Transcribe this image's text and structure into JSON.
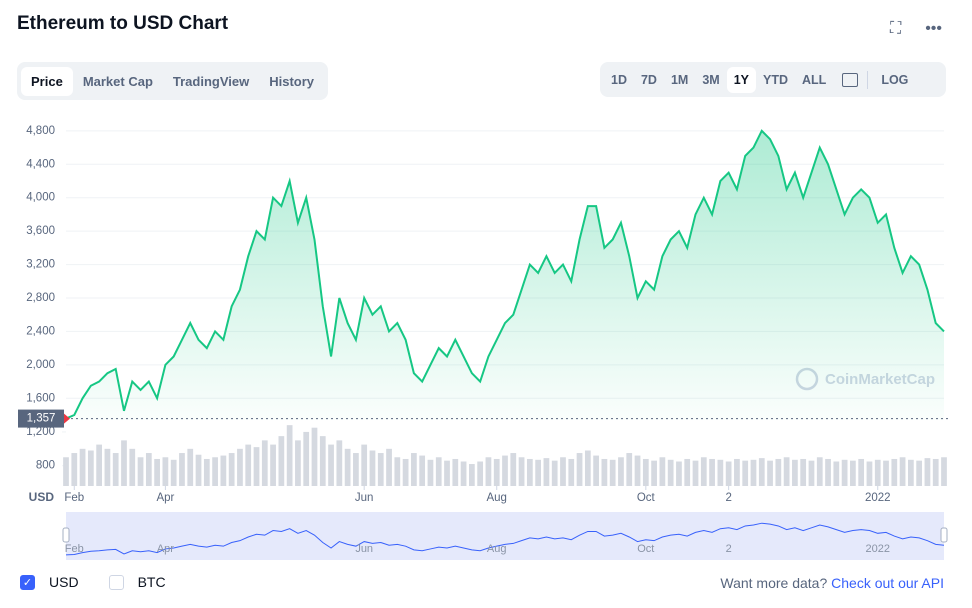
{
  "header": {
    "title": "Ethereum to USD Chart"
  },
  "tabs": [
    "Price",
    "Market Cap",
    "TradingView",
    "History"
  ],
  "active_tab_index": 0,
  "ranges": [
    "1D",
    "7D",
    "1M",
    "3M",
    "1Y",
    "YTD",
    "ALL"
  ],
  "active_range_index": 4,
  "log_label": "LOG",
  "chart_data": {
    "type": "line",
    "y_axis_label": "USD",
    "watermark": "CoinMarketCap",
    "categories": [
      null,
      "Feb",
      null,
      null,
      null,
      null,
      null,
      null,
      null,
      null,
      null,
      null,
      "Apr",
      null,
      null,
      null,
      null,
      null,
      null,
      null,
      null,
      null,
      null,
      null,
      null,
      null,
      null,
      null,
      null,
      null,
      null,
      null,
      null,
      null,
      null,
      null,
      "Jun",
      null,
      null,
      null,
      null,
      null,
      null,
      null,
      null,
      null,
      null,
      null,
      null,
      null,
      null,
      null,
      "Aug",
      null,
      null,
      null,
      null,
      null,
      null,
      null,
      null,
      null,
      null,
      null,
      null,
      null,
      null,
      null,
      null,
      null,
      "Oct",
      null,
      null,
      null,
      null,
      null,
      null,
      null,
      null,
      null,
      "2",
      null,
      null,
      null,
      null,
      null,
      null,
      null,
      null,
      null,
      null,
      null,
      null,
      null,
      null,
      null,
      null,
      null,
      "2022",
      null,
      null,
      null,
      null,
      null,
      null,
      null,
      null
    ],
    "color": "#16c784",
    "values": [
      1357,
      1400,
      1600,
      1750,
      1800,
      1900,
      1950,
      1450,
      1800,
      1700,
      1800,
      1600,
      2000,
      2100,
      2300,
      2500,
      2300,
      2200,
      2400,
      2300,
      2700,
      2900,
      3300,
      3600,
      3500,
      4000,
      3900,
      4200,
      3700,
      4000,
      3500,
      2700,
      2100,
      2800,
      2500,
      2300,
      2800,
      2600,
      2700,
      2400,
      2500,
      2300,
      1900,
      1800,
      2000,
      2200,
      2100,
      2300,
      2100,
      1900,
      1800,
      2100,
      2300,
      2500,
      2600,
      2900,
      3200,
      3100,
      3300,
      3100,
      3200,
      3000,
      3500,
      3900,
      3900,
      3400,
      3500,
      3700,
      3300,
      2800,
      3000,
      2900,
      3300,
      3500,
      3600,
      3400,
      3800,
      4000,
      3800,
      4200,
      4300,
      4100,
      4500,
      4600,
      4800,
      4700,
      4500,
      4100,
      4300,
      4000,
      4300,
      4600,
      4400,
      4100,
      3800,
      4000,
      4100,
      4000,
      3700,
      3800,
      3400,
      3100,
      3300,
      3200,
      2900,
      2500,
      2400
    ],
    "ylim": [
      1340,
      4930
    ],
    "yticks": [
      {
        "value": 1600,
        "label": "1,600"
      },
      {
        "value": 2000,
        "label": "2,000"
      },
      {
        "value": 2400,
        "label": "2,400"
      },
      {
        "value": 2800,
        "label": "2,800"
      },
      {
        "value": 3200,
        "label": "3,200"
      },
      {
        "value": 3600,
        "label": "3,600"
      },
      {
        "value": 4000,
        "label": "4,000"
      },
      {
        "value": 4400,
        "label": "4,400"
      },
      {
        "value": 4800,
        "label": "4,800"
      }
    ],
    "grid": true,
    "price_marker": {
      "value": 1357,
      "label": "1,357"
    },
    "volume": {
      "color": "#d5d9e0",
      "values": [
        900,
        950,
        1000,
        980,
        1050,
        1000,
        950,
        1100,
        1000,
        900,
        950,
        880,
        900,
        870,
        950,
        1000,
        930,
        880,
        900,
        920,
        950,
        1000,
        1050,
        1020,
        1100,
        1050,
        1150,
        1280,
        1100,
        1200,
        1250,
        1150,
        1050,
        1100,
        1000,
        950,
        1050,
        980,
        950,
        1000,
        900,
        880,
        950,
        920,
        870,
        900,
        860,
        880,
        850,
        820,
        850,
        900,
        880,
        920,
        950,
        900,
        880,
        870,
        890,
        860,
        900,
        880,
        950,
        980,
        920,
        880,
        870,
        900,
        950,
        920,
        880,
        860,
        900,
        870,
        850,
        880,
        860,
        900,
        880,
        870,
        850,
        880,
        860,
        870,
        890,
        860,
        880,
        900,
        870,
        880,
        860,
        900,
        880,
        850,
        870,
        860,
        880,
        850,
        870,
        860,
        880,
        900,
        870,
        860,
        890,
        880,
        900
      ]
    },
    "y2lim": [
      560,
      1270
    ],
    "y2ticks": [
      800,
      {
        "value": 1200,
        "label": "1,200"
      }
    ]
  },
  "legend": [
    {
      "name": "USD",
      "checked": true
    },
    {
      "name": "BTC",
      "checked": false
    }
  ],
  "footer": {
    "prompt": "Want more data?",
    "link": "Check out our API"
  }
}
